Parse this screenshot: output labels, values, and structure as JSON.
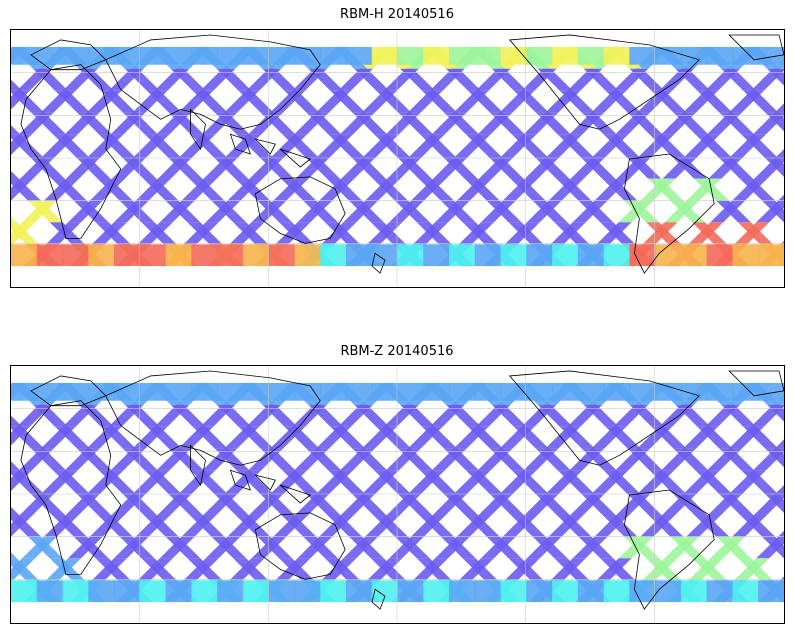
{
  "panels": [
    {
      "title": "RBM-H 20140516",
      "variant": "H"
    },
    {
      "title": "RBM-Z 20140516",
      "variant": "Z"
    }
  ],
  "colors": {
    "low": "#6b5cf0",
    "mid_low": "#5aa6f5",
    "cyan": "#4ff0f0",
    "green": "#9cf59a",
    "yellow": "#f2f25a",
    "orange": "#f7b24c",
    "red": "#f46a5a",
    "coast": "#000000",
    "grid": "#cccccc"
  },
  "map": {
    "projection": "cylindrical",
    "coastlines": true,
    "gridlines": true
  }
}
